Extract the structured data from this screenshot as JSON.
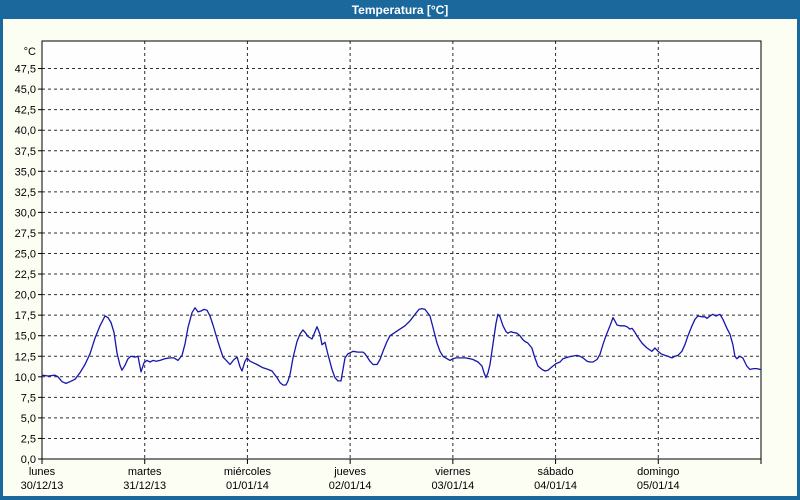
{
  "window": {
    "title": "Temperatura [°C]"
  },
  "colors": {
    "frame": "#1b689d",
    "title_text": "#ffffff",
    "content_bg": "#fcfdf3",
    "plot_bg": "#fefefe",
    "plot_border": "#000000",
    "grid": "#2e2e2e",
    "line": "#1616ad",
    "text": "#000000"
  },
  "chart_data": {
    "type": "line",
    "title": "Temperatura [°C]",
    "y_unit_label": "°C",
    "y_min": 0,
    "y_max": 50,
    "y_step": 2.5,
    "grid": "dashed",
    "legend_position": "none",
    "y_tick_labels": [
      "0,0",
      "2,5",
      "5,0",
      "7,5",
      "10,0",
      "12,5",
      "15,0",
      "17,5",
      "20,0",
      "22,5",
      "25,0",
      "27,5",
      "30,0",
      "32,5",
      "35,0",
      "37,5",
      "40,0",
      "42,5",
      "45,0",
      "47,5"
    ],
    "x_days": [
      {
        "name": "lunes",
        "date": "30/12/13"
      },
      {
        "name": "martes",
        "date": "31/12/13"
      },
      {
        "name": "miércoles",
        "date": "01/01/14"
      },
      {
        "name": "jueves",
        "date": "02/01/14"
      },
      {
        "name": "viernes",
        "date": "03/01/14"
      },
      {
        "name": "sábado",
        "date": "04/01/14"
      },
      {
        "name": "domingo",
        "date": "05/01/14"
      }
    ],
    "series": [
      {
        "name": "Temperatura",
        "x_unit": "days_from_start",
        "points": [
          [
            0.0,
            10.2
          ],
          [
            0.058,
            10.1
          ],
          [
            0.127,
            10.2
          ],
          [
            0.156,
            10.0
          ],
          [
            0.195,
            9.4
          ],
          [
            0.234,
            9.2
          ],
          [
            0.273,
            9.4
          ],
          [
            0.321,
            9.7
          ],
          [
            0.37,
            10.5
          ],
          [
            0.419,
            11.5
          ],
          [
            0.467,
            12.8
          ],
          [
            0.516,
            14.7
          ],
          [
            0.565,
            16.2
          ],
          [
            0.613,
            17.4
          ],
          [
            0.643,
            17.2
          ],
          [
            0.672,
            16.6
          ],
          [
            0.701,
            15.4
          ],
          [
            0.73,
            12.9
          ],
          [
            0.759,
            11.4
          ],
          [
            0.779,
            10.8
          ],
          [
            0.808,
            11.4
          ],
          [
            0.837,
            12.2
          ],
          [
            0.866,
            12.5
          ],
          [
            0.905,
            12.4
          ],
          [
            0.935,
            12.5
          ],
          [
            0.964,
            10.6
          ],
          [
            0.993,
            11.7
          ],
          [
            1.022,
            12.0
          ],
          [
            1.051,
            11.8
          ],
          [
            1.081,
            12.0
          ],
          [
            1.11,
            11.9
          ],
          [
            1.149,
            12.0
          ],
          [
            1.197,
            12.2
          ],
          [
            1.246,
            12.3
          ],
          [
            1.285,
            12.3
          ],
          [
            1.324,
            12.0
          ],
          [
            1.363,
            12.6
          ],
          [
            1.392,
            14.0
          ],
          [
            1.421,
            16.0
          ],
          [
            1.46,
            17.8
          ],
          [
            1.49,
            18.4
          ],
          [
            1.519,
            17.9
          ],
          [
            1.548,
            18.0
          ],
          [
            1.577,
            18.2
          ],
          [
            1.606,
            18.1
          ],
          [
            1.636,
            17.4
          ],
          [
            1.665,
            16.3
          ],
          [
            1.713,
            14.3
          ],
          [
            1.762,
            12.4
          ],
          [
            1.801,
            11.9
          ],
          [
            1.83,
            11.5
          ],
          [
            1.869,
            12.1
          ],
          [
            1.899,
            12.4
          ],
          [
            1.928,
            11.2
          ],
          [
            1.947,
            10.7
          ],
          [
            1.976,
            11.9
          ],
          [
            1.996,
            12.3
          ],
          [
            2.025,
            11.9
          ],
          [
            2.093,
            11.5
          ],
          [
            2.152,
            11.1
          ],
          [
            2.2,
            10.9
          ],
          [
            2.239,
            10.7
          ],
          [
            2.288,
            9.9
          ],
          [
            2.317,
            9.3
          ],
          [
            2.346,
            9.0
          ],
          [
            2.376,
            9.0
          ],
          [
            2.395,
            9.5
          ],
          [
            2.415,
            10.3
          ],
          [
            2.444,
            12.3
          ],
          [
            2.483,
            14.3
          ],
          [
            2.512,
            15.2
          ],
          [
            2.541,
            15.7
          ],
          [
            2.561,
            15.4
          ],
          [
            2.59,
            14.9
          ],
          [
            2.629,
            14.6
          ],
          [
            2.658,
            15.5
          ],
          [
            2.677,
            16.1
          ],
          [
            2.706,
            15.2
          ],
          [
            2.726,
            13.9
          ],
          [
            2.755,
            14.2
          ],
          [
            2.784,
            12.7
          ],
          [
            2.823,
            10.9
          ],
          [
            2.852,
            9.9
          ],
          [
            2.881,
            9.5
          ],
          [
            2.911,
            9.5
          ],
          [
            2.93,
            10.9
          ],
          [
            2.95,
            12.3
          ],
          [
            2.979,
            12.8
          ],
          [
            3.028,
            13.1
          ],
          [
            3.076,
            13.0
          ],
          [
            3.125,
            13.0
          ],
          [
            3.145,
            12.8
          ],
          [
            3.193,
            11.9
          ],
          [
            3.223,
            11.5
          ],
          [
            3.261,
            11.5
          ],
          [
            3.291,
            12.1
          ],
          [
            3.32,
            13.1
          ],
          [
            3.359,
            14.3
          ],
          [
            3.388,
            15.0
          ],
          [
            3.437,
            15.4
          ],
          [
            3.485,
            15.8
          ],
          [
            3.534,
            16.2
          ],
          [
            3.583,
            16.8
          ],
          [
            3.631,
            17.6
          ],
          [
            3.67,
            18.2
          ],
          [
            3.7,
            18.3
          ],
          [
            3.729,
            18.2
          ],
          [
            3.777,
            17.4
          ],
          [
            3.807,
            16.0
          ],
          [
            3.846,
            14.1
          ],
          [
            3.875,
            13.1
          ],
          [
            3.904,
            12.5
          ],
          [
            3.943,
            12.2
          ],
          [
            3.972,
            12.0
          ],
          [
            4.001,
            12.2
          ],
          [
            4.031,
            12.3
          ],
          [
            4.07,
            12.3
          ],
          [
            4.118,
            12.3
          ],
          [
            4.167,
            12.2
          ],
          [
            4.196,
            12.1
          ],
          [
            4.245,
            11.8
          ],
          [
            4.284,
            11.3
          ],
          [
            4.303,
            10.5
          ],
          [
            4.323,
            9.9
          ],
          [
            4.342,
            10.5
          ],
          [
            4.362,
            11.5
          ],
          [
            4.391,
            14.0
          ],
          [
            4.42,
            16.5
          ],
          [
            4.439,
            17.6
          ],
          [
            4.459,
            17.3
          ],
          [
            4.488,
            16.2
          ],
          [
            4.517,
            15.5
          ],
          [
            4.537,
            15.3
          ],
          [
            4.566,
            15.5
          ],
          [
            4.585,
            15.4
          ],
          [
            4.624,
            15.3
          ],
          [
            4.653,
            15.0
          ],
          [
            4.683,
            14.5
          ],
          [
            4.702,
            14.3
          ],
          [
            4.731,
            14.1
          ],
          [
            4.77,
            13.5
          ],
          [
            4.799,
            12.3
          ],
          [
            4.829,
            11.3
          ],
          [
            4.868,
            10.9
          ],
          [
            4.897,
            10.7
          ],
          [
            4.926,
            10.8
          ],
          [
            4.955,
            11.1
          ],
          [
            4.985,
            11.4
          ],
          [
            5.004,
            11.6
          ],
          [
            5.043,
            11.8
          ],
          [
            5.072,
            12.2
          ],
          [
            5.121,
            12.4
          ],
          [
            5.16,
            12.5
          ],
          [
            5.208,
            12.6
          ],
          [
            5.238,
            12.5
          ],
          [
            5.267,
            12.3
          ],
          [
            5.306,
            11.9
          ],
          [
            5.335,
            11.8
          ],
          [
            5.364,
            11.8
          ],
          [
            5.403,
            12.1
          ],
          [
            5.432,
            12.7
          ],
          [
            5.461,
            13.9
          ],
          [
            5.491,
            15.0
          ],
          [
            5.53,
            16.2
          ],
          [
            5.559,
            17.2
          ],
          [
            5.578,
            16.8
          ],
          [
            5.598,
            16.3
          ],
          [
            5.627,
            16.2
          ],
          [
            5.666,
            16.2
          ],
          [
            5.695,
            16.1
          ],
          [
            5.724,
            15.8
          ],
          [
            5.744,
            15.9
          ],
          [
            5.773,
            15.4
          ],
          [
            5.792,
            15.0
          ],
          [
            5.841,
            14.1
          ],
          [
            5.89,
            13.5
          ],
          [
            5.938,
            13.1
          ],
          [
            5.968,
            13.5
          ],
          [
            5.997,
            13.1
          ],
          [
            6.026,
            12.8
          ],
          [
            6.065,
            12.6
          ],
          [
            6.094,
            12.5
          ],
          [
            6.133,
            12.3
          ],
          [
            6.162,
            12.5
          ],
          [
            6.191,
            12.6
          ],
          [
            6.23,
            13.1
          ],
          [
            6.259,
            13.9
          ],
          [
            6.289,
            15.0
          ],
          [
            6.328,
            16.2
          ],
          [
            6.357,
            17.0
          ],
          [
            6.386,
            17.4
          ],
          [
            6.425,
            17.3
          ],
          [
            6.454,
            17.3
          ],
          [
            6.474,
            17.1
          ],
          [
            6.503,
            17.4
          ],
          [
            6.532,
            17.6
          ],
          [
            6.561,
            17.4
          ],
          [
            6.6,
            17.6
          ],
          [
            6.629,
            17.0
          ],
          [
            6.668,
            15.9
          ],
          [
            6.697,
            15.2
          ],
          [
            6.726,
            13.9
          ],
          [
            6.746,
            12.5
          ],
          [
            6.765,
            12.2
          ],
          [
            6.794,
            12.5
          ],
          [
            6.823,
            12.3
          ],
          [
            6.862,
            11.3
          ],
          [
            6.892,
            10.9
          ],
          [
            6.93,
            11.0
          ],
          [
            6.96,
            11.0
          ],
          [
            6.989,
            10.9
          ]
        ]
      }
    ]
  }
}
